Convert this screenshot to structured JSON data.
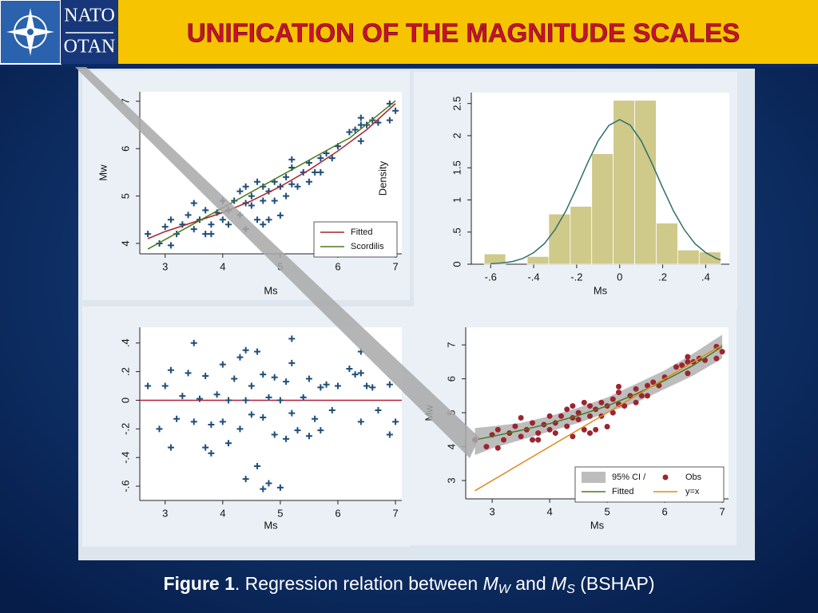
{
  "header": {
    "title": "UNIFICATION OF THE MAGNITUDE SCALES",
    "logo_top": "NATO",
    "logo_bottom": "OTAN"
  },
  "caption": {
    "label": "Figure 1",
    "text": ". Regression relation between ",
    "m1": "M",
    "s1": "W",
    "and": " and ",
    "m2": "M",
    "s2": "S",
    "tail": " (BSHAP)"
  },
  "chart_data": [
    {
      "type": "scatter",
      "xlabel": "Ms",
      "ylabel": "Mw",
      "xlim": [
        2.56,
        7.11
      ],
      "ylim": [
        3.78,
        7.2
      ],
      "xticks": [
        3,
        4,
        5,
        6,
        7
      ],
      "yticks": [
        4,
        5,
        6,
        7
      ],
      "legend": "lower right",
      "series": [
        {
          "type": "points",
          "marker": "plus",
          "color": "#1f4e79",
          "x": [
            2.7,
            2.9,
            3.0,
            3.1,
            3.1,
            3.2,
            3.3,
            3.4,
            3.5,
            3.5,
            3.6,
            3.7,
            3.7,
            3.8,
            3.8,
            3.9,
            4.0,
            4.0,
            4.1,
            4.1,
            4.2,
            4.3,
            4.3,
            4.4,
            4.4,
            4.4,
            4.5,
            4.5,
            4.6,
            4.6,
            4.7,
            4.7,
            4.7,
            4.8,
            4.8,
            4.9,
            4.9,
            5.0,
            5.0,
            5.1,
            5.1,
            5.2,
            5.2,
            5.2,
            5.3,
            5.4,
            5.5,
            5.5,
            5.6,
            5.7,
            5.7,
            5.8,
            5.9,
            6.0,
            6.2,
            6.3,
            6.4,
            6.4,
            6.5,
            6.6,
            6.7,
            6.9,
            6.9,
            7.0,
            6.4
          ],
          "values": [
            4.2,
            4.0,
            4.35,
            3.96,
            4.5,
            4.2,
            4.4,
            4.6,
            4.3,
            4.85,
            4.5,
            4.2,
            4.7,
            4.4,
            4.2,
            4.65,
            4.5,
            4.9,
            4.7,
            4.4,
            4.9,
            4.6,
            5.1,
            4.85,
            5.2,
            4.3,
            4.8,
            5.0,
            4.5,
            5.3,
            4.9,
            5.2,
            4.4,
            5.1,
            4.5,
            5.3,
            4.9,
            5.2,
            4.59,
            5.4,
            5.0,
            5.6,
            5.25,
            5.77,
            5.2,
            5.5,
            5.7,
            5.3,
            5.5,
            5.8,
            5.5,
            5.9,
            5.8,
            6.05,
            6.35,
            6.4,
            6.16,
            6.65,
            6.5,
            6.6,
            6.55,
            6.95,
            6.6,
            6.8,
            6.5
          ]
        },
        {
          "name": "Fitted",
          "type": "line",
          "color": "#a3262e",
          "x": [
            2.7,
            3,
            3.5,
            4,
            4.5,
            5,
            5.5,
            6,
            6.5,
            7
          ],
          "values": [
            4.1,
            4.25,
            4.45,
            4.65,
            4.9,
            5.2,
            5.55,
            5.95,
            6.4,
            6.95
          ]
        },
        {
          "name": "Scordilis",
          "type": "line",
          "color": "#4a7a1e",
          "x": [
            2.7,
            6.1,
            6.2,
            7.0
          ],
          "values": [
            3.88,
            6.16,
            6.22,
            7.01
          ]
        }
      ]
    },
    {
      "type": "histogram",
      "xlabel": "Ms",
      "ylabel": "Density",
      "xlim": [
        -0.69,
        0.51
      ],
      "ylim": [
        0,
        2.67
      ],
      "xticks": [
        {
          "value": -0.6,
          "label": "-.6"
        },
        {
          "value": -0.4,
          "label": "-.4"
        },
        {
          "value": -0.2,
          "label": "-.2"
        },
        0,
        {
          "value": 0.2,
          "label": ".2"
        },
        {
          "value": 0.4,
          "label": ".4"
        }
      ],
      "yticks": [
        0,
        {
          "value": 0.5,
          "label": ".5"
        },
        1,
        1.5,
        2,
        2.5
      ],
      "color": "#cfc98a",
      "bins": [
        -0.63,
        -0.53,
        -0.43,
        -0.33,
        -0.23,
        -0.13,
        -0.03,
        0.07,
        0.17,
        0.27,
        0.37,
        0.47
      ],
      "values": [
        0.16,
        0,
        0.12,
        0.78,
        0.9,
        1.72,
        2.55,
        2.55,
        0.64,
        0.22,
        0.19
      ],
      "curve": {
        "color": "#2f6f6a",
        "x": [
          -0.6,
          -0.55,
          -0.5,
          -0.45,
          -0.4,
          -0.35,
          -0.3,
          -0.25,
          -0.2,
          -0.15,
          -0.1,
          -0.05,
          0,
          0.05,
          0.1,
          0.15,
          0.2,
          0.25,
          0.3,
          0.35,
          0.4,
          0.45,
          0.47
        ],
        "values": [
          0.007,
          0.018,
          0.04,
          0.089,
          0.18,
          0.32,
          0.54,
          0.83,
          1.19,
          1.57,
          1.92,
          2.16,
          2.25,
          2.16,
          1.92,
          1.57,
          1.19,
          0.83,
          0.54,
          0.32,
          0.18,
          0.089,
          0.066
        ]
      }
    },
    {
      "type": "scatter",
      "xlabel": "Ms",
      "xlim": [
        2.56,
        7.11
      ],
      "ylim": [
        -0.7,
        0.51
      ],
      "xticks": [
        3,
        4,
        5,
        6,
        7
      ],
      "yticks": [
        {
          "value": -0.6,
          "label": "-.6"
        },
        {
          "value": -0.4,
          "label": "-.4"
        },
        {
          "value": -0.2,
          "label": "-.2"
        },
        0,
        {
          "value": 0.2,
          "label": ".2"
        },
        {
          "value": 0.4,
          "label": ".4"
        }
      ],
      "hline": 0,
      "hline_color": "#b0203a",
      "series": [
        {
          "type": "points",
          "marker": "plus",
          "color": "#1f4e79",
          "x": [
            2.7,
            2.9,
            3.0,
            3.1,
            3.1,
            3.2,
            3.3,
            3.4,
            3.5,
            3.5,
            3.6,
            3.7,
            3.7,
            3.8,
            3.8,
            3.9,
            4.0,
            4.0,
            4.1,
            4.1,
            4.2,
            4.3,
            4.3,
            4.4,
            4.4,
            4.4,
            4.5,
            4.5,
            4.6,
            4.6,
            4.7,
            4.7,
            4.7,
            4.8,
            4.8,
            4.9,
            4.9,
            5.0,
            5.0,
            5.1,
            5.1,
            5.2,
            5.2,
            5.2,
            5.3,
            5.4,
            5.5,
            5.5,
            5.6,
            5.7,
            5.7,
            5.8,
            5.9,
            6.0,
            6.2,
            6.3,
            6.4,
            6.4,
            6.5,
            6.6,
            6.7,
            6.9,
            6.9,
            7.0,
            6.4
          ],
          "values": [
            0.1,
            -0.2,
            0.1,
            -0.33,
            0.21,
            -0.13,
            0.03,
            0.19,
            -0.15,
            0.4,
            0.01,
            -0.33,
            0.17,
            -0.17,
            -0.37,
            0.04,
            -0.15,
            0.25,
            0,
            -0.3,
            0.15,
            -0.2,
            0.3,
            0,
            0.35,
            -0.55,
            -0.1,
            0.1,
            -0.46,
            0.34,
            -0.12,
            0.18,
            -0.62,
            0.02,
            -0.58,
            0.16,
            -0.24,
            0,
            -0.61,
            0.13,
            -0.27,
            0.26,
            -0.09,
            0.43,
            -0.21,
            0.02,
            0.15,
            -0.25,
            -0.13,
            0.09,
            -0.21,
            0.11,
            -0.07,
            0.1,
            0.22,
            0.18,
            -0.15,
            0.34,
            0.1,
            0.09,
            -0.07,
            0.11,
            -0.24,
            -0.15,
            0.19
          ]
        }
      ]
    },
    {
      "type": "scatter",
      "xlabel": "Ms",
      "ylabel": "Mw",
      "xlim": [
        2.54,
        7.11
      ],
      "ylim": [
        2.46,
        7.52
      ],
      "xticks": [
        3,
        4,
        5,
        6,
        7
      ],
      "yticks": [
        3,
        4,
        5,
        6,
        7
      ],
      "legend": "lower right",
      "legend_columns": 2,
      "series": [
        {
          "name": "95% CI /",
          "type": "band",
          "color": "#bdbdbd",
          "x": [
            2.7,
            3,
            3.5,
            4,
            4.5,
            5,
            5.5,
            6,
            6.5,
            7
          ],
          "lower": [
            3.75,
            3.95,
            4.2,
            4.45,
            4.7,
            5.0,
            5.3,
            5.7,
            6.1,
            6.6
          ],
          "upper": [
            4.55,
            4.6,
            4.7,
            4.9,
            5.15,
            5.45,
            5.85,
            6.25,
            6.75,
            7.3
          ]
        },
        {
          "name": "Obs",
          "type": "points",
          "marker": "circle",
          "color": "#9b2530",
          "x": [
            2.7,
            2.9,
            3.0,
            3.1,
            3.1,
            3.2,
            3.3,
            3.4,
            3.5,
            3.5,
            3.6,
            3.7,
            3.7,
            3.8,
            3.8,
            3.9,
            4.0,
            4.0,
            4.1,
            4.1,
            4.2,
            4.3,
            4.3,
            4.4,
            4.4,
            4.4,
            4.5,
            4.5,
            4.6,
            4.6,
            4.7,
            4.7,
            4.7,
            4.8,
            4.8,
            4.9,
            4.9,
            5.0,
            5.0,
            5.1,
            5.1,
            5.2,
            5.2,
            5.2,
            5.3,
            5.4,
            5.5,
            5.5,
            5.6,
            5.7,
            5.7,
            5.8,
            5.9,
            6.0,
            6.2,
            6.3,
            6.4,
            6.4,
            6.5,
            6.6,
            6.7,
            6.9,
            6.9,
            7.0,
            6.4
          ],
          "values": [
            4.2,
            4.0,
            4.35,
            3.96,
            4.5,
            4.2,
            4.4,
            4.6,
            4.3,
            4.85,
            4.5,
            4.2,
            4.7,
            4.4,
            4.2,
            4.65,
            4.5,
            4.9,
            4.7,
            4.4,
            4.9,
            4.6,
            5.1,
            4.85,
            5.2,
            4.3,
            4.8,
            5.0,
            4.5,
            5.3,
            4.9,
            5.2,
            4.4,
            5.1,
            4.5,
            5.3,
            4.9,
            5.2,
            4.59,
            5.4,
            5.0,
            5.6,
            5.25,
            5.77,
            5.2,
            5.5,
            5.7,
            5.3,
            5.5,
            5.8,
            5.5,
            5.9,
            5.8,
            6.05,
            6.35,
            6.4,
            6.16,
            6.65,
            6.5,
            6.6,
            6.55,
            6.95,
            6.6,
            6.8,
            6.5
          ]
        },
        {
          "name": "Fitted",
          "type": "line",
          "color": "#4a7a1e",
          "x": [
            2.7,
            3,
            3.5,
            4,
            4.5,
            5,
            5.5,
            6,
            6.5,
            7
          ],
          "values": [
            4.2,
            4.3,
            4.48,
            4.68,
            4.92,
            5.2,
            5.55,
            5.95,
            6.4,
            6.95
          ]
        },
        {
          "name": "y=x",
          "type": "line",
          "color": "#e08a1e",
          "x": [
            2.7,
            7
          ],
          "values": [
            2.7,
            7
          ]
        }
      ]
    }
  ]
}
